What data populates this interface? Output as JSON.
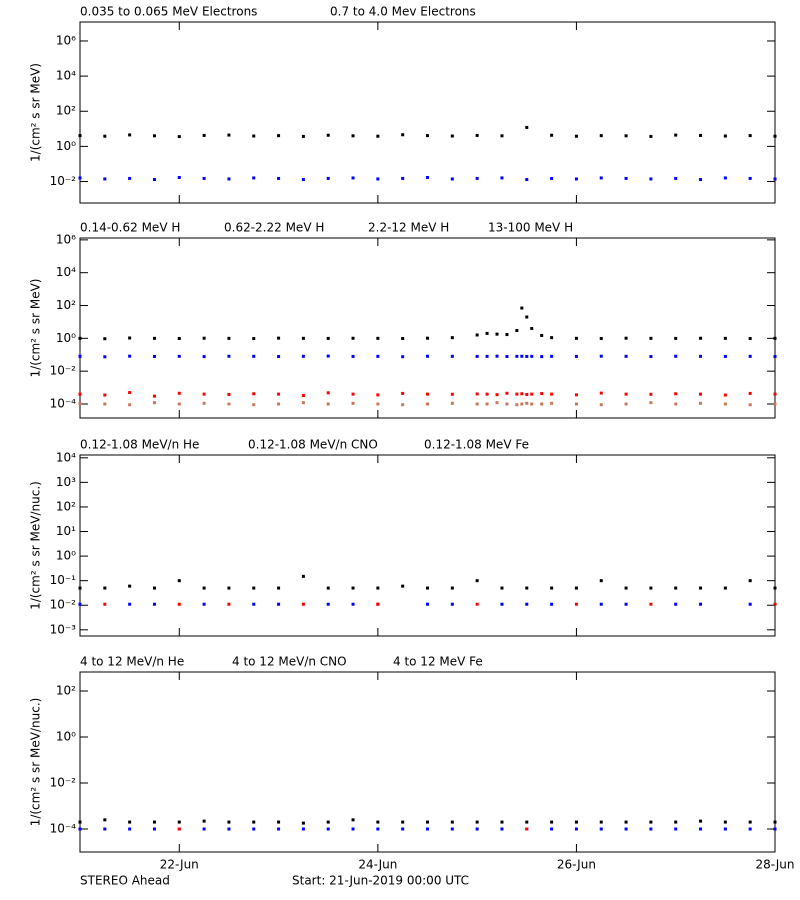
{
  "chart_data": [
    {
      "type": "scatter",
      "ylabel": "1/(cm² s sr MeV)",
      "log_y": true,
      "xlim": [
        0,
        7
      ],
      "xticks": [
        1,
        3,
        5,
        7
      ],
      "ylim": [
        0.0006,
        12000000
      ],
      "yticks": [
        {
          "value": 0.01,
          "label": "10⁻²"
        },
        {
          "value": 1,
          "label": "10⁰"
        },
        {
          "value": 100,
          "label": "10²"
        },
        {
          "value": 10000,
          "label": "10⁴"
        },
        {
          "value": 1000000,
          "label": "10⁶"
        }
      ],
      "x": [
        0,
        0.25,
        0.5,
        0.75,
        1,
        1.25,
        1.5,
        1.75,
        2,
        2.25,
        2.5,
        2.75,
        3,
        3.25,
        3.5,
        3.75,
        4,
        4.25,
        4.5,
        4.75,
        5,
        5.25,
        5.5,
        5.75,
        6,
        6.25,
        6.5,
        6.75,
        7
      ],
      "series": [
        {
          "name": "0.035 to 0.065 MeV Electrons",
          "color": "#000000",
          "values": [
            4.1,
            3.8,
            4.5,
            4.0,
            3.6,
            4.2,
            4.4,
            3.9,
            4.1,
            3.7,
            4.3,
            4.0,
            3.8,
            4.6,
            4.1,
            3.9,
            4.2,
            4.0,
            12,
            4.3,
            3.8,
            4.1,
            4.0,
            3.7,
            4.4,
            4.2,
            3.9,
            4.1,
            3.8
          ]
        },
        {
          "name": "0.7 to 4.0 Mev Electrons",
          "color": "#0000ff",
          "values": [
            0.016,
            0.014,
            0.015,
            0.013,
            0.017,
            0.015,
            0.014,
            0.016,
            0.015,
            0.013,
            0.015,
            0.016,
            0.014,
            0.015,
            0.017,
            0.014,
            0.015,
            0.016,
            0.013,
            0.015,
            0.014,
            0.016,
            0.015,
            0.014,
            0.015,
            0.013,
            0.016,
            0.015,
            0.014
          ]
        }
      ]
    },
    {
      "type": "scatter",
      "ylabel": "1/(cm² s sr MeV)",
      "log_y": true,
      "xlim": [
        0,
        7
      ],
      "xticks": [
        1,
        3,
        5,
        7
      ],
      "ylim": [
        1.4e-05,
        1300000
      ],
      "yticks": [
        {
          "value": 0.0001,
          "label": "10⁻⁴"
        },
        {
          "value": 0.01,
          "label": "10⁻²"
        },
        {
          "value": 1,
          "label": "10⁰"
        },
        {
          "value": 100,
          "label": "10²"
        },
        {
          "value": 10000,
          "label": "10⁴"
        },
        {
          "value": 1000000,
          "label": "10⁶"
        }
      ],
      "x": [
        0,
        0.25,
        0.5,
        0.75,
        1,
        1.25,
        1.5,
        1.75,
        2,
        2.25,
        2.5,
        2.75,
        3,
        3.25,
        3.5,
        3.75,
        4,
        4.1,
        4.2,
        4.3,
        4.4,
        4.45,
        4.5,
        4.55,
        4.65,
        4.75,
        5,
        5.25,
        5.5,
        5.75,
        6,
        6.25,
        6.5,
        6.75,
        7
      ],
      "series": [
        {
          "name": "0.14-0.62 MeV H",
          "color": "#000000",
          "values": [
            1.0,
            0.95,
            1.05,
            1.0,
            0.98,
            1.02,
            1.0,
            0.97,
            1.03,
            1.0,
            0.99,
            1.01,
            1.0,
            0.98,
            1.02,
            1.1,
            1.6,
            2.0,
            1.8,
            1.7,
            3,
            70,
            20,
            4,
            1.5,
            1.1,
            1.0,
            0.98,
            1.02,
            1.0,
            0.99,
            1.01,
            1.0,
            0.97,
            1.0
          ]
        },
        {
          "name": "0.62-2.22 MeV H",
          "color": "#0000ff",
          "values": [
            0.08,
            0.075,
            0.082,
            0.079,
            0.08,
            0.077,
            0.081,
            0.08,
            0.078,
            0.08,
            0.083,
            0.079,
            0.08,
            0.076,
            0.081,
            0.08,
            0.079,
            0.08,
            0.082,
            0.078,
            0.08,
            0.081,
            0.079,
            0.08,
            0.077,
            0.08,
            0.079,
            0.082,
            0.08,
            0.078,
            0.081,
            0.08,
            0.079,
            0.08,
            0.078
          ]
        },
        {
          "name": "2.2-12 MeV H",
          "color": "#c8785a",
          "values": [
            0.00011,
            0.0001,
            9e-05,
            0.00012,
            0.0001,
            0.00011,
            0.0001,
            9e-05,
            0.0001,
            0.00012,
            0.0001,
            0.00011,
            0.0001,
            9e-05,
            0.0001,
            0.00011,
            0.0001,
            0.0001,
            0.00012,
            0.0001,
            9e-05,
            0.0001,
            0.00011,
            0.0001,
            0.0001,
            0.00011,
            0.0001,
            9e-05,
            0.0001,
            0.00012,
            0.0001,
            0.00011,
            0.0001,
            9e-05,
            0.0001
          ]
        },
        {
          "name": "13-100 MeV H",
          "color": "#ff0000",
          "values": [
            0.0004,
            0.00035,
            0.0005,
            0.0003,
            0.00045,
            0.0004,
            0.00038,
            0.00042,
            0.0004,
            0.00033,
            0.00048,
            0.0004,
            0.00036,
            0.00044,
            0.0004,
            0.00039,
            0.00041,
            0.0004,
            0.00037,
            0.00045,
            0.0004,
            0.00042,
            0.00038,
            0.0004,
            0.00043,
            0.0004,
            0.00036,
            0.00046,
            0.0004,
            0.00039,
            0.00042,
            0.0004,
            0.00035,
            0.00044,
            0.0004
          ]
        }
      ]
    },
    {
      "type": "scatter",
      "ylabel": "1/(cm² s sr MeV/nuc.)",
      "log_y": true,
      "xlim": [
        0,
        7
      ],
      "xticks": [
        1,
        3,
        5,
        7
      ],
      "ylim": [
        0.00056,
        13000
      ],
      "yticks": [
        {
          "value": 0.001,
          "label": "10⁻³"
        },
        {
          "value": 0.01,
          "label": "10⁻²"
        },
        {
          "value": 0.1,
          "label": "10⁻¹"
        },
        {
          "value": 1,
          "label": "10⁰"
        },
        {
          "value": 10,
          "label": "10¹"
        },
        {
          "value": 100,
          "label": "10²"
        },
        {
          "value": 1000,
          "label": "10³"
        },
        {
          "value": 10000,
          "label": "10⁴"
        }
      ],
      "x": [
        0,
        0.25,
        0.5,
        0.75,
        1,
        1.25,
        1.5,
        1.75,
        2,
        2.25,
        2.5,
        2.75,
        3,
        3.25,
        3.5,
        3.75,
        4,
        4.25,
        4.5,
        4.75,
        5,
        5.25,
        5.5,
        5.75,
        6,
        6.25,
        6.5,
        6.75,
        7
      ],
      "series": [
        {
          "name": "0.12-1.08 MeV/n He",
          "color": "#000000",
          "values": [
            0.05,
            0.05,
            0.06,
            0.05,
            0.1,
            0.05,
            0.05,
            0.05,
            0.05,
            0.15,
            0.05,
            0.05,
            0.05,
            0.06,
            0.05,
            0.05,
            0.1,
            0.05,
            0.05,
            0.05,
            0.05,
            0.1,
            0.05,
            0.05,
            0.05,
            0.05,
            0.05,
            0.1,
            0.05
          ]
        },
        {
          "name": "0.12-1.08 MeV/n CNO",
          "color": "#0000ff",
          "values": [
            0.011,
            null,
            0.011,
            0.011,
            null,
            0.011,
            null,
            0.011,
            0.011,
            null,
            0.011,
            0.011,
            0.011,
            null,
            0.011,
            0.011,
            null,
            0.011,
            0.011,
            0.011,
            null,
            0.011,
            0.011,
            null,
            0.011,
            0.011,
            null,
            0.011,
            null
          ]
        },
        {
          "name": "0.12-1.08 MeV Fe",
          "color": "#ff0000",
          "values": [
            null,
            0.011,
            null,
            null,
            0.011,
            null,
            0.011,
            null,
            null,
            0.011,
            null,
            null,
            0.011,
            null,
            null,
            null,
            0.011,
            null,
            null,
            null,
            0.011,
            null,
            null,
            0.011,
            null,
            null,
            null,
            null,
            0.011
          ]
        }
      ]
    },
    {
      "type": "scatter",
      "ylabel": "1/(cm² s sr MeV/nuc.)",
      "log_y": true,
      "xlim": [
        0,
        7
      ],
      "xticks": [
        {
          "value": 1,
          "label": "22-Jun"
        },
        {
          "value": 3,
          "label": "24-Jun"
        },
        {
          "value": 5,
          "label": "26-Jun"
        },
        {
          "value": 7,
          "label": "28-Jun"
        }
      ],
      "ylim": [
        1e-05,
        670
      ],
      "yticks": [
        {
          "value": 0.0001,
          "label": "10⁻⁴"
        },
        {
          "value": 0.01,
          "label": "10⁻²"
        },
        {
          "value": 1,
          "label": "10⁰"
        },
        {
          "value": 100,
          "label": "10²"
        }
      ],
      "x": [
        0,
        0.25,
        0.5,
        0.75,
        1,
        1.25,
        1.5,
        1.75,
        2,
        2.25,
        2.5,
        2.75,
        3,
        3.25,
        3.5,
        3.75,
        4,
        4.25,
        4.5,
        4.75,
        5,
        5.25,
        5.5,
        5.75,
        6,
        6.25,
        6.5,
        6.75,
        7
      ],
      "series": [
        {
          "name": "4 to 12 MeV/n He",
          "color": "#000000",
          "values": [
            0.0002,
            0.00025,
            0.0002,
            0.0002,
            0.0002,
            0.00022,
            0.0002,
            0.0002,
            0.0002,
            0.00018,
            0.0002,
            0.00025,
            0.0002,
            0.0002,
            0.0002,
            0.0002,
            0.0002,
            0.0002,
            0.0002,
            0.0002,
            0.0002,
            0.0002,
            0.0002,
            0.0002,
            0.0002,
            0.00022,
            0.0002,
            0.0002,
            0.0002
          ]
        },
        {
          "name": "4 to 12 MeV/n CNO",
          "color": "#0000ff",
          "values": [
            0.0001,
            0.0001,
            0.0001,
            0.0001,
            0.0001,
            0.0001,
            0.0001,
            0.0001,
            0.0001,
            0.0001,
            0.0001,
            0.0001,
            0.0001,
            0.0001,
            0.0001,
            0.0001,
            0.0001,
            0.0001,
            0.0001,
            0.0001,
            0.0001,
            0.0001,
            0.0001,
            0.0001,
            0.0001,
            0.0001,
            0.0001,
            0.0001,
            0.0001
          ]
        },
        {
          "name": "4 to 12 MeV Fe",
          "color": "#ff0000",
          "values": [
            null,
            null,
            null,
            null,
            0.0001,
            null,
            null,
            null,
            null,
            null,
            null,
            null,
            null,
            null,
            null,
            null,
            null,
            null,
            0.0001,
            null,
            null,
            null,
            null,
            null,
            null,
            null,
            null,
            null,
            null
          ]
        }
      ]
    }
  ],
  "footer": {
    "left": "STEREO Ahead",
    "center": "Start: 21-Jun-2019 00:00 UTC"
  }
}
